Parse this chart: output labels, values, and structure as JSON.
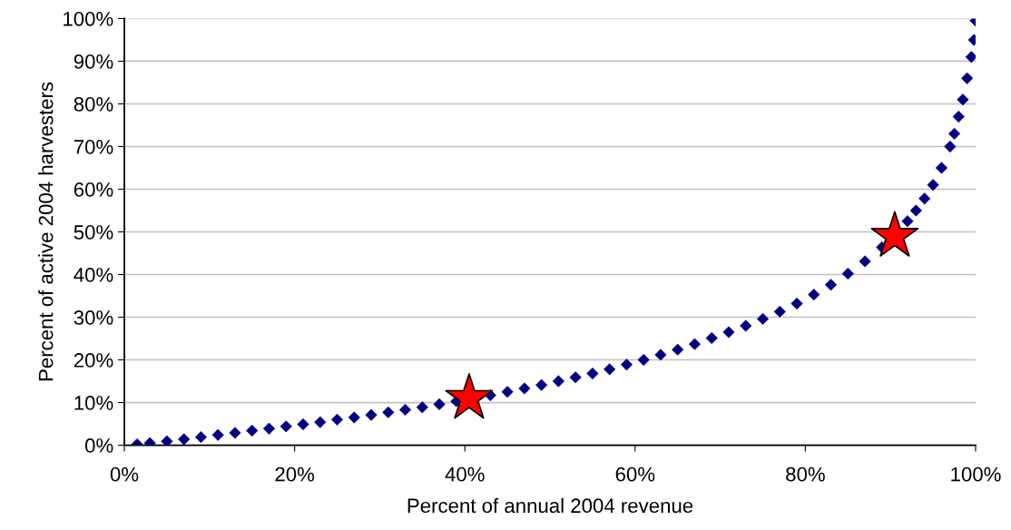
{
  "chart_data": {
    "type": "scatter",
    "xlabel": "Percent of annual 2004 revenue",
    "ylabel": "Percent of active 2004 harvesters",
    "series": [
      {
        "marker": "diamond",
        "color": "#000080",
        "x": [
          1.5,
          3,
          5,
          7,
          9,
          11,
          13,
          15,
          17,
          19,
          21,
          23,
          25,
          27,
          29,
          31,
          33,
          35,
          37,
          39,
          43,
          45,
          47,
          49,
          51,
          53,
          55,
          57,
          59,
          61,
          63,
          65,
          67,
          69,
          71,
          73,
          75,
          77,
          79,
          81,
          83,
          85,
          87,
          89,
          92,
          93,
          94,
          95,
          96,
          97,
          97.5,
          98,
          98.5,
          99,
          99.5,
          99.8,
          100
        ],
        "values": [
          0.2,
          0.5,
          0.9,
          1.4,
          1.9,
          2.4,
          2.9,
          3.4,
          3.9,
          4.4,
          4.9,
          5.4,
          6.0,
          6.5,
          7.1,
          7.7,
          8.3,
          8.9,
          9.6,
          10.3,
          11.7,
          12.5,
          13.3,
          14.1,
          15.0,
          15.9,
          16.8,
          17.8,
          18.9,
          20.0,
          21.2,
          22.4,
          23.7,
          25.1,
          26.5,
          28.0,
          29.6,
          31.3,
          33.2,
          35.3,
          37.6,
          40.2,
          43.1,
          46.4,
          52.5,
          55,
          57.8,
          61,
          65,
          70,
          73,
          77,
          81,
          86,
          91,
          95,
          99.5
        ]
      },
      {
        "type": "scatter",
        "marker": "star",
        "color": "#ff0000",
        "x": [
          40.5,
          90.5
        ],
        "values": [
          11,
          49
        ]
      }
    ],
    "xlim": [
      0,
      100
    ],
    "ylim": [
      0,
      100
    ],
    "xticks": [
      {
        "value": 0,
        "label": "0%"
      },
      {
        "value": 20,
        "label": "20%"
      },
      {
        "value": 40,
        "label": "40%"
      },
      {
        "value": 60,
        "label": "60%"
      },
      {
        "value": 80,
        "label": "80%"
      },
      {
        "value": 100,
        "label": "100%"
      }
    ],
    "yticks": [
      {
        "value": 0,
        "label": "0%"
      },
      {
        "value": 10,
        "label": "10%"
      },
      {
        "value": 20,
        "label": "20%"
      },
      {
        "value": 30,
        "label": "30%"
      },
      {
        "value": 40,
        "label": "40%"
      },
      {
        "value": 50,
        "label": "50%"
      },
      {
        "value": 60,
        "label": "60%"
      },
      {
        "value": 70,
        "label": "70%"
      },
      {
        "value": 80,
        "label": "80%"
      },
      {
        "value": 90,
        "label": "90%"
      },
      {
        "value": 100,
        "label": "100%"
      }
    ],
    "grid": "y"
  }
}
